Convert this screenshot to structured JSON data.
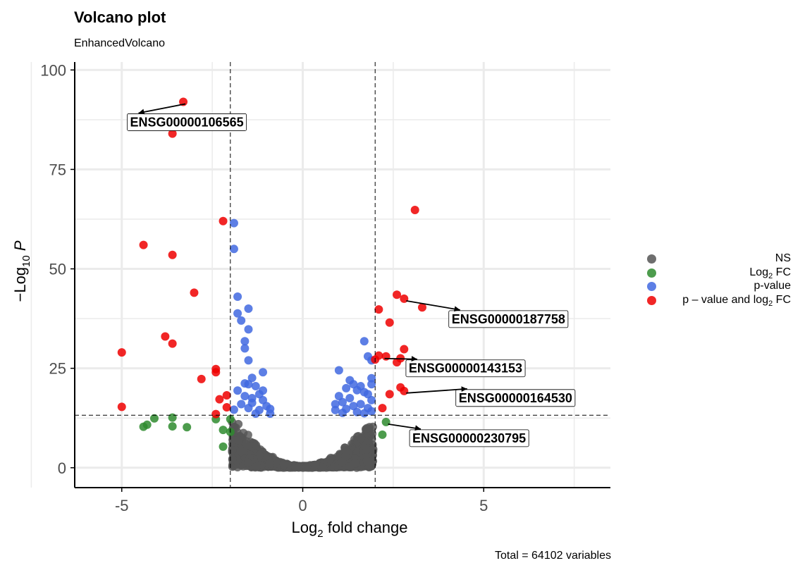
{
  "title": "Volcano plot",
  "subtitle": "EnhancedVolcano",
  "caption": "Total = 64102 variables",
  "colors": {
    "NS": "#555555",
    "FC": "#2e8b2e",
    "P": "#4169e1",
    "FC_P": "#ee0000"
  },
  "legend": [
    {
      "key": "NS",
      "label": "NS",
      "color": "#555555"
    },
    {
      "key": "FC",
      "label": "Log2 FC",
      "base": "Log",
      "sub": "2",
      "tail": " FC",
      "color": "#2e8b2e"
    },
    {
      "key": "P",
      "label": "p-value",
      "color": "#4169e1"
    },
    {
      "key": "FC_P",
      "label": "p – value and log2 FC",
      "base": "p – value and log",
      "sub": "2",
      "tail": " FC",
      "color": "#ee0000"
    }
  ],
  "chart_data": {
    "type": "scatter",
    "title": "Volcano plot",
    "subtitle": "EnhancedVolcano",
    "xlabel": "Log2 fold change",
    "xlabel_parts": {
      "base": "Log",
      "sub": "2",
      "tail": " fold change"
    },
    "ylabel": "−Log10 P",
    "ylabel_parts": {
      "base": "−Log",
      "sub": "10",
      "tail": " P"
    },
    "xlim": [
      -6.3,
      8.5
    ],
    "ylim": [
      -5,
      102
    ],
    "xticks": [
      -5,
      0,
      5
    ],
    "xtick_labels": [
      "-5",
      "0",
      "5"
    ],
    "yticks": [
      0,
      25,
      50,
      75,
      100
    ],
    "ytick_labels": [
      "0",
      "25",
      "50",
      "75",
      "100"
    ],
    "grid": true,
    "cutoffs": {
      "log2fc": [
        -2,
        2
      ],
      "neglog10p": 13.2
    },
    "legend_position": "right",
    "series": [
      {
        "name": "NS",
        "color_key": "NS",
        "generated": "v-shaped cloud of non-significant points near origin"
      },
      {
        "name": "Log2 FC",
        "color_key": "FC",
        "points": [
          [
            -4.4,
            10.3
          ],
          [
            -4.3,
            10.8
          ],
          [
            -4.1,
            12.4
          ],
          [
            -3.6,
            12.6
          ],
          [
            -3.6,
            10.4
          ],
          [
            -3.2,
            10.2
          ],
          [
            -2.4,
            12.2
          ],
          [
            -2.2,
            9.5
          ],
          [
            -2.0,
            12.2
          ],
          [
            -2.0,
            9.0
          ],
          [
            -2.2,
            5.3
          ],
          [
            2.2,
            8.3
          ],
          [
            2.3,
            11.5
          ]
        ]
      },
      {
        "name": "p-value",
        "color_key": "P",
        "points": [
          [
            -1.9,
            61.5
          ],
          [
            -1.9,
            55.0
          ],
          [
            -1.8,
            43.0
          ],
          [
            -1.5,
            40.0
          ],
          [
            -1.8,
            38.8
          ],
          [
            -1.7,
            37.0
          ],
          [
            -1.5,
            34.8
          ],
          [
            -1.6,
            31.8
          ],
          [
            -1.6,
            30.0
          ],
          [
            -1.5,
            27.0
          ],
          [
            -1.1,
            24.0
          ],
          [
            -1.4,
            22.6
          ],
          [
            -1.6,
            21.2
          ],
          [
            -1.5,
            21.0
          ],
          [
            -1.3,
            20.5
          ],
          [
            -1.1,
            19.4
          ],
          [
            -1.8,
            19.4
          ],
          [
            -1.2,
            18.5
          ],
          [
            -1.6,
            18.0
          ],
          [
            -1.4,
            17.5
          ],
          [
            -1.1,
            17.0
          ],
          [
            -1.7,
            16.0
          ],
          [
            -1.4,
            16.3
          ],
          [
            -1.0,
            15.5
          ],
          [
            -1.5,
            15.0
          ],
          [
            -1.2,
            14.5
          ],
          [
            -1.9,
            14.6
          ],
          [
            -0.9,
            14.8
          ],
          [
            -1.3,
            13.6
          ],
          [
            -0.9,
            13.6
          ],
          [
            1.7,
            31.8
          ],
          [
            1.8,
            28.0
          ],
          [
            1.0,
            24.5
          ],
          [
            1.3,
            22.0
          ],
          [
            1.4,
            21.0
          ],
          [
            1.6,
            20.5
          ],
          [
            1.9,
            21.0
          ],
          [
            1.9,
            22.5
          ],
          [
            1.2,
            20.0
          ],
          [
            1.5,
            19.5
          ],
          [
            1.7,
            19.0
          ],
          [
            1.8,
            18.5
          ],
          [
            1.0,
            18.0
          ],
          [
            1.3,
            17.5
          ],
          [
            1.9,
            17.0
          ],
          [
            1.1,
            16.5
          ],
          [
            1.6,
            16.0
          ],
          [
            0.9,
            16.0
          ],
          [
            1.4,
            15.5
          ],
          [
            1.8,
            15.0
          ],
          [
            1.2,
            14.8
          ],
          [
            0.9,
            14.5
          ],
          [
            1.5,
            14.0
          ],
          [
            1.9,
            14.2
          ],
          [
            1.1,
            13.8
          ],
          [
            1.7,
            13.7
          ],
          [
            1.9,
            27.0
          ]
        ]
      },
      {
        "name": "p – value and log2 FC",
        "color_key": "FC_P",
        "points": [
          [
            -3.3,
            92.0
          ],
          [
            -3.6,
            84.0
          ],
          [
            -2.2,
            62.0
          ],
          [
            -4.4,
            56.0
          ],
          [
            -3.6,
            53.5
          ],
          [
            -3.0,
            44.0
          ],
          [
            -3.8,
            33.0
          ],
          [
            -3.6,
            31.2
          ],
          [
            -5.0,
            29.0
          ],
          [
            -2.4,
            24.8
          ],
          [
            -2.4,
            24.0
          ],
          [
            -2.8,
            22.3
          ],
          [
            -2.1,
            18.2
          ],
          [
            -2.3,
            17.2
          ],
          [
            -2.1,
            15.2
          ],
          [
            -5.0,
            15.3
          ],
          [
            -2.4,
            13.5
          ],
          [
            3.1,
            64.8
          ],
          [
            2.6,
            43.5
          ],
          [
            2.8,
            42.5
          ],
          [
            3.3,
            40.3
          ],
          [
            2.1,
            39.8
          ],
          [
            2.4,
            36.5
          ],
          [
            2.8,
            29.8
          ],
          [
            2.1,
            28.2
          ],
          [
            2.3,
            28.0
          ],
          [
            2.7,
            27.5
          ],
          [
            2.6,
            26.5
          ],
          [
            2.0,
            27.2
          ],
          [
            2.7,
            20.2
          ],
          [
            2.8,
            19.3
          ],
          [
            2.4,
            18.5
          ],
          [
            2.2,
            15.0
          ]
        ]
      }
    ],
    "labels": [
      {
        "text": "ENSG00000106565",
        "x": -3.3,
        "y": 92.0
      },
      {
        "text": "ENSG00000187758",
        "x": 2.8,
        "y": 42.5
      },
      {
        "text": "ENSG00000143153",
        "x": 2.2,
        "y": 28.0
      },
      {
        "text": "ENSG00000164530",
        "x": 2.8,
        "y": 19.3
      },
      {
        "text": "ENSG00000230795",
        "x": 2.3,
        "y": 11.5
      }
    ]
  }
}
